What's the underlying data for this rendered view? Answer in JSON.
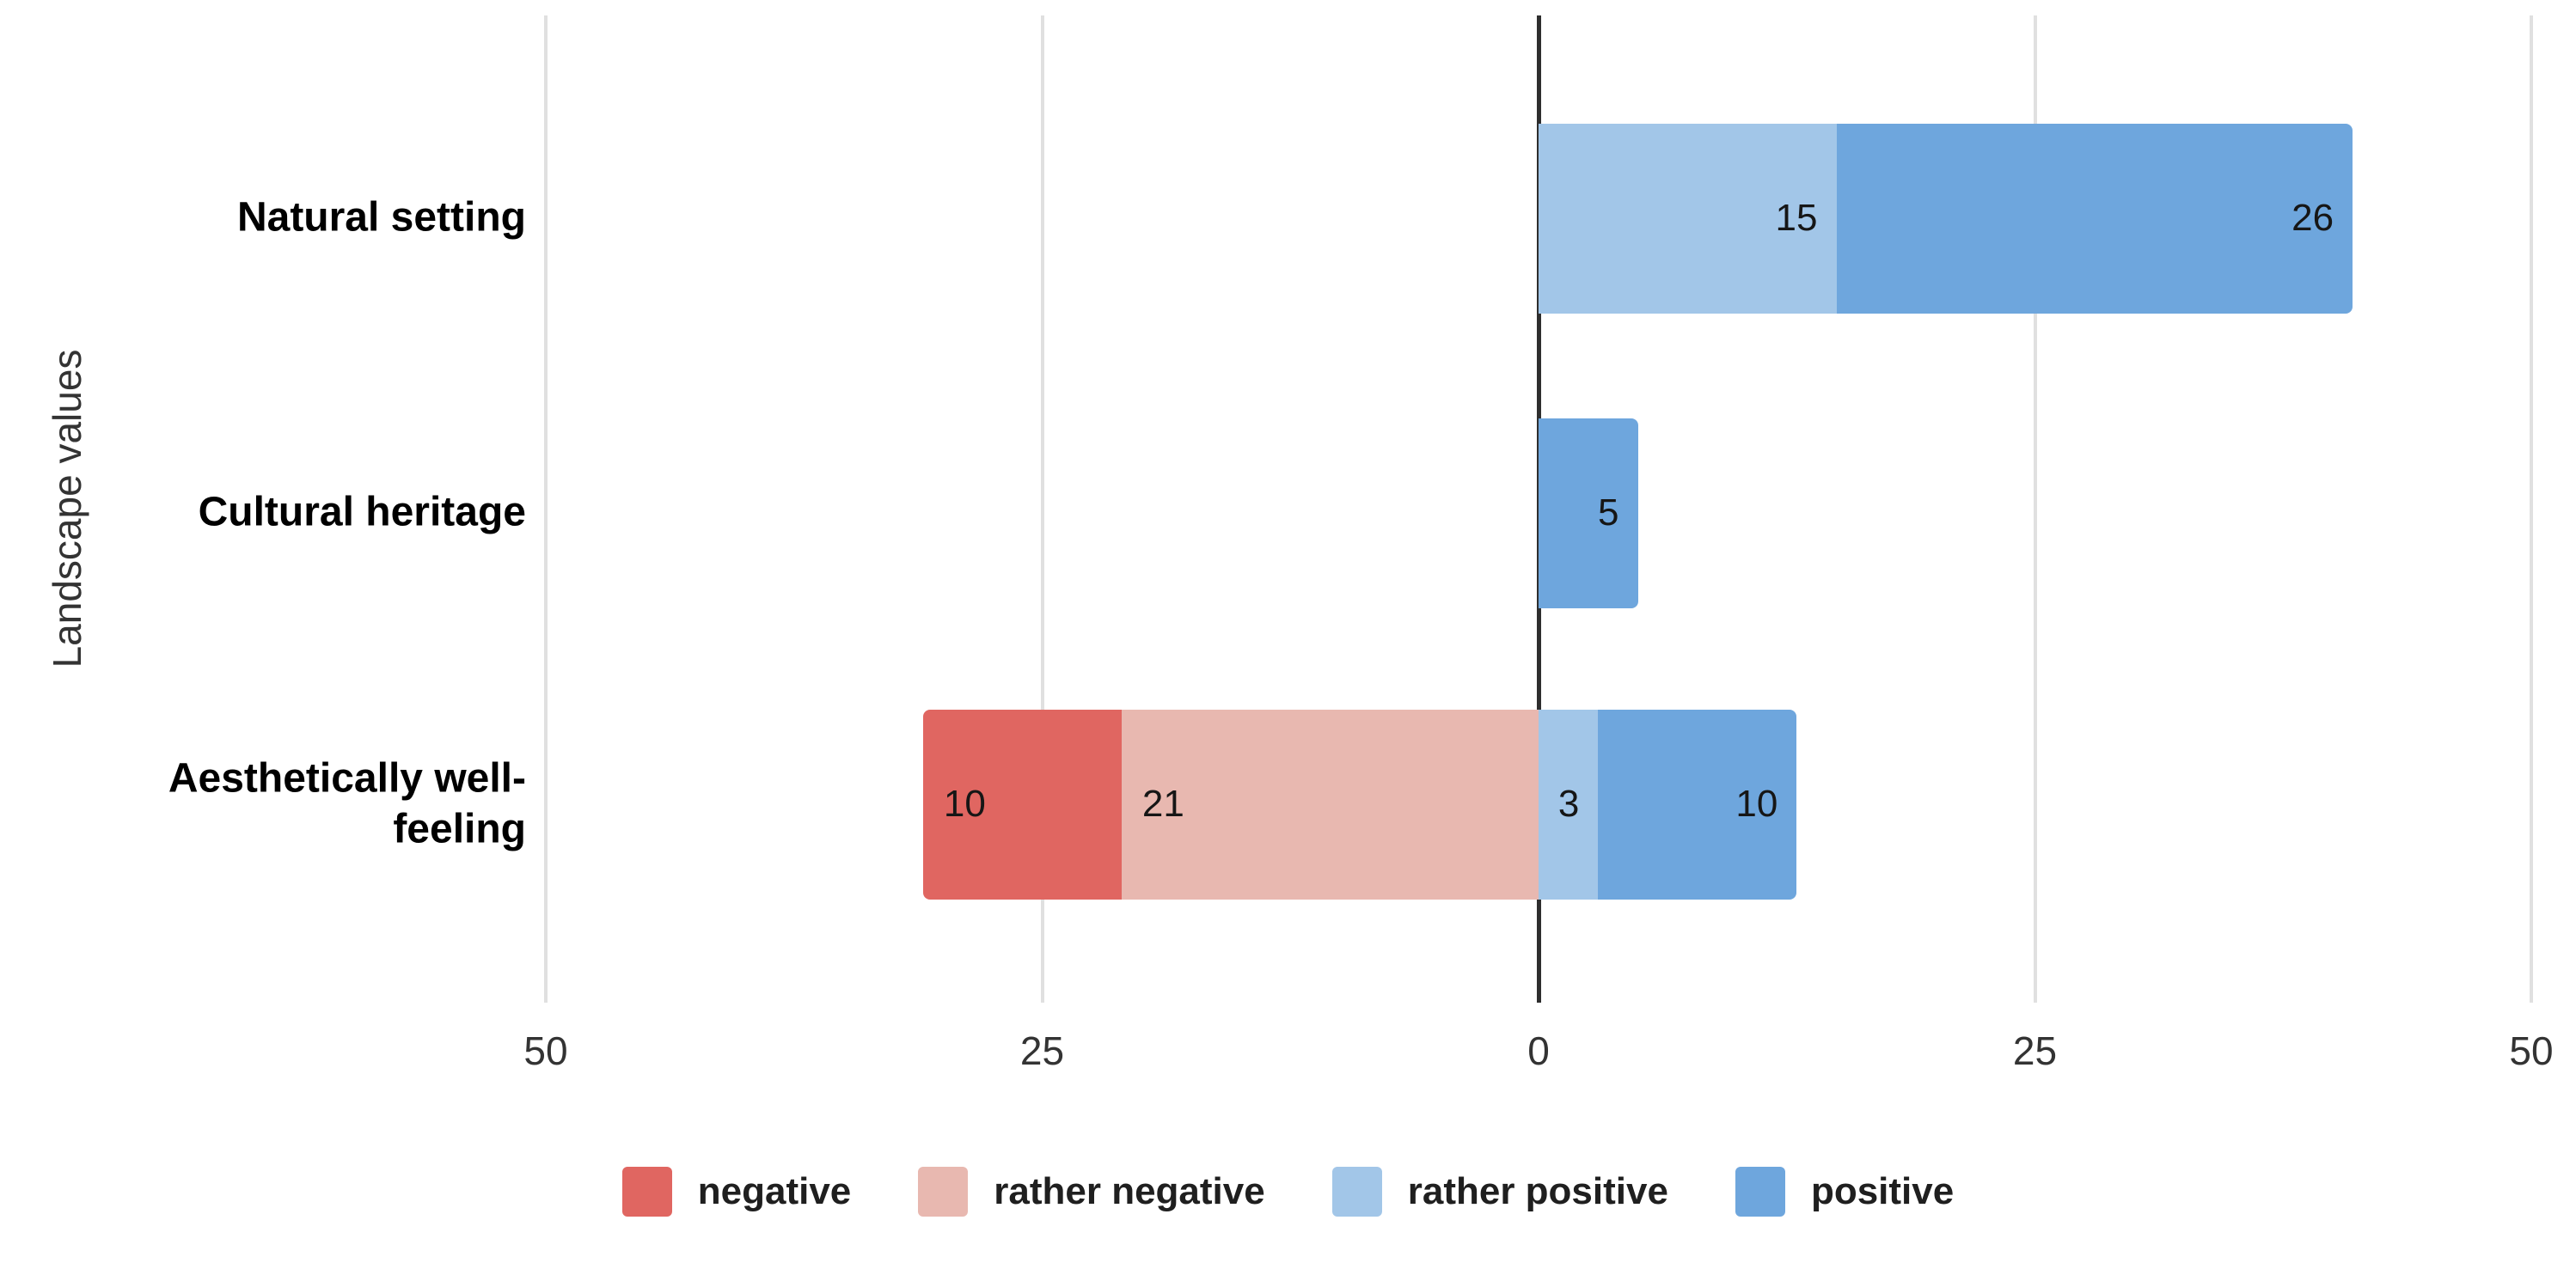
{
  "chart_data": {
    "type": "bar",
    "variant": "diverging-stacked-horizontal",
    "title": "",
    "xlabel": "",
    "ylabel": "Landscape values",
    "categories": [
      "Natural setting",
      "Cultural heritage",
      "Aesthetically well-feeling"
    ],
    "series": [
      {
        "name": "negative",
        "color": "#e06661",
        "direction": "negative",
        "values": [
          0,
          0,
          10
        ]
      },
      {
        "name": "rather negative",
        "color": "#e8b8b0",
        "direction": "negative",
        "values": [
          0,
          0,
          21
        ]
      },
      {
        "name": "rather positive",
        "color": "#a2c6e8",
        "direction": "positive",
        "values": [
          15,
          0,
          3
        ]
      },
      {
        "name": "positive",
        "color": "#6ea6dd",
        "direction": "positive",
        "values": [
          26,
          5,
          10
        ]
      }
    ],
    "x_ticks": [
      -50,
      -25,
      0,
      25,
      50
    ],
    "x_tick_labels": [
      "50",
      "25",
      "0",
      "25",
      "50"
    ],
    "xlim": [
      -50,
      50
    ],
    "grid": true,
    "gridline_color": "#e0e0e0",
    "zero_line_color": "#2e2e2e",
    "legend_position": "bottom",
    "data_label_color": "#161616"
  },
  "legend": {
    "items": [
      {
        "label": "negative",
        "color": "#e06661"
      },
      {
        "label": "rather negative",
        "color": "#e8b8b0"
      },
      {
        "label": "rather positive",
        "color": "#a2c6e8"
      },
      {
        "label": "positive",
        "color": "#6ea6dd"
      }
    ]
  },
  "axes": {
    "y_title": "Landscape values"
  }
}
